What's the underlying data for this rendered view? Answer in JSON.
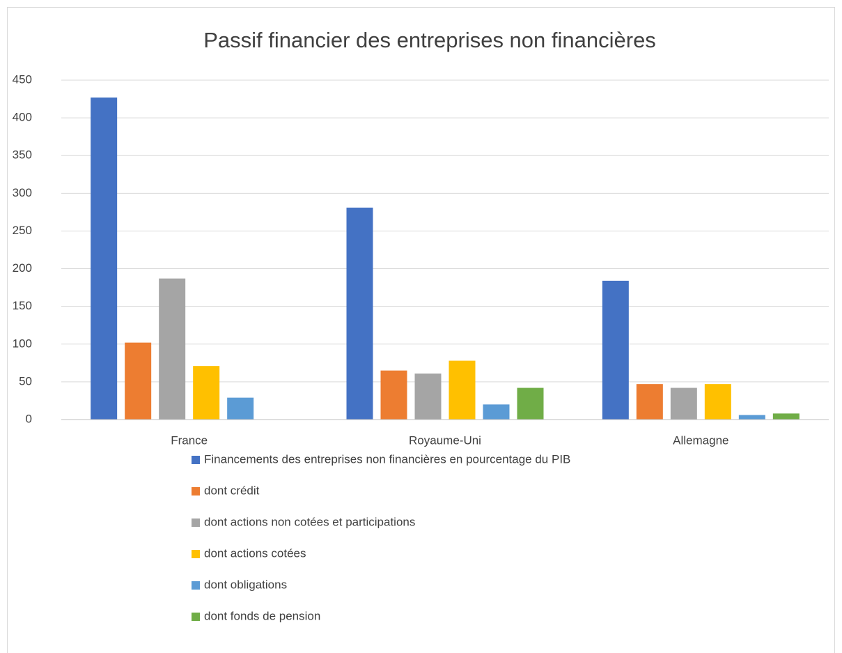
{
  "chart_data": {
    "type": "bar",
    "title": "Passif financier des entreprises non financières",
    "categories": [
      "France",
      "Royaume-Uni",
      "Allemagne"
    ],
    "series": [
      {
        "name": "Financements des entreprises non financières en pourcentage du PIB",
        "color": "#4472c4",
        "values": [
          427,
          281,
          184
        ]
      },
      {
        "name": "dont crédit",
        "color": "#ed7d31",
        "values": [
          102,
          65,
          47
        ]
      },
      {
        "name": "dont actions non cotées et participations",
        "color": "#a5a5a5",
        "values": [
          187,
          61,
          42
        ]
      },
      {
        "name": "dont actions cotées",
        "color": "#ffc000",
        "values": [
          71,
          78,
          47
        ]
      },
      {
        "name": "dont obligations",
        "color": "#5b9bd5",
        "values": [
          29,
          20,
          6
        ]
      },
      {
        "name": "dont fonds de pension",
        "color": "#70ad47",
        "values": [
          0,
          42,
          8
        ]
      }
    ],
    "ylim": [
      0,
      450
    ],
    "yticks": [
      0,
      50,
      100,
      150,
      200,
      250,
      300,
      350,
      400,
      450
    ],
    "grid": true,
    "legend": "bottom"
  }
}
